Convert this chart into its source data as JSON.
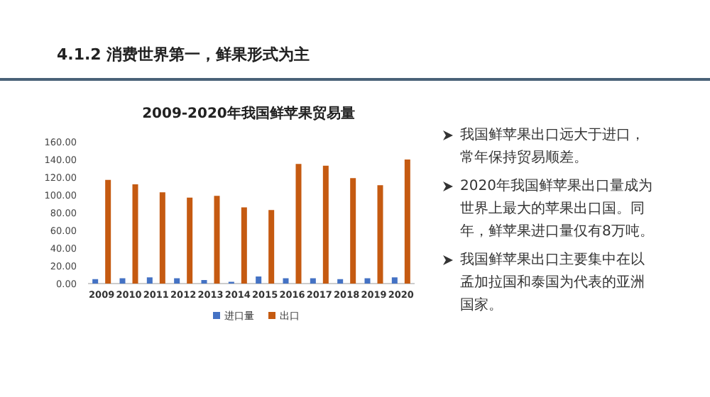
{
  "chart_data": {
    "type": "bar",
    "title": "2009-2020年我国鲜苹果贸易量",
    "categories": [
      "2009",
      "2010",
      "2011",
      "2012",
      "2013",
      "2014",
      "2015",
      "2016",
      "2017",
      "2018",
      "2019",
      "2020"
    ],
    "series": [
      {
        "name": "进口量",
        "color": "#4472c4",
        "values": [
          5,
          6,
          7,
          6,
          4,
          2,
          8,
          6,
          6,
          5,
          6,
          7
        ]
      },
      {
        "name": "出口",
        "color": "#c55a11",
        "values": [
          117,
          112,
          103,
          97,
          99,
          86,
          83,
          135,
          133,
          119,
          111,
          140
        ]
      }
    ],
    "ylim": [
      0,
      160
    ],
    "yticks": [
      {
        "value": 0,
        "label": "0.00"
      },
      {
        "value": 20,
        "label": "20.00"
      },
      {
        "value": 40,
        "label": "40.00"
      },
      {
        "value": 60,
        "label": "60.00"
      },
      {
        "value": 80,
        "label": "80.00"
      },
      {
        "value": 100,
        "label": "100.00"
      },
      {
        "value": 120,
        "label": "120.00"
      },
      {
        "value": 140,
        "label": "140.00"
      },
      {
        "value": 160,
        "label": "160.00"
      }
    ],
    "legend": "bottom",
    "annotations": [
      "4.1.2 消费世界第一，鲜果形式为主",
      "我国鲜苹果出口远大于进口，常年保持贸易顺差。",
      "2020年我国鲜苹果出口量成为世界上最大的苹果出口国。同年，鲜苹果进口量仅有8万吨。",
      "我国鲜苹果出口主要集中在以孟加拉国和泰国为代表的亚洲国家。"
    ]
  }
}
